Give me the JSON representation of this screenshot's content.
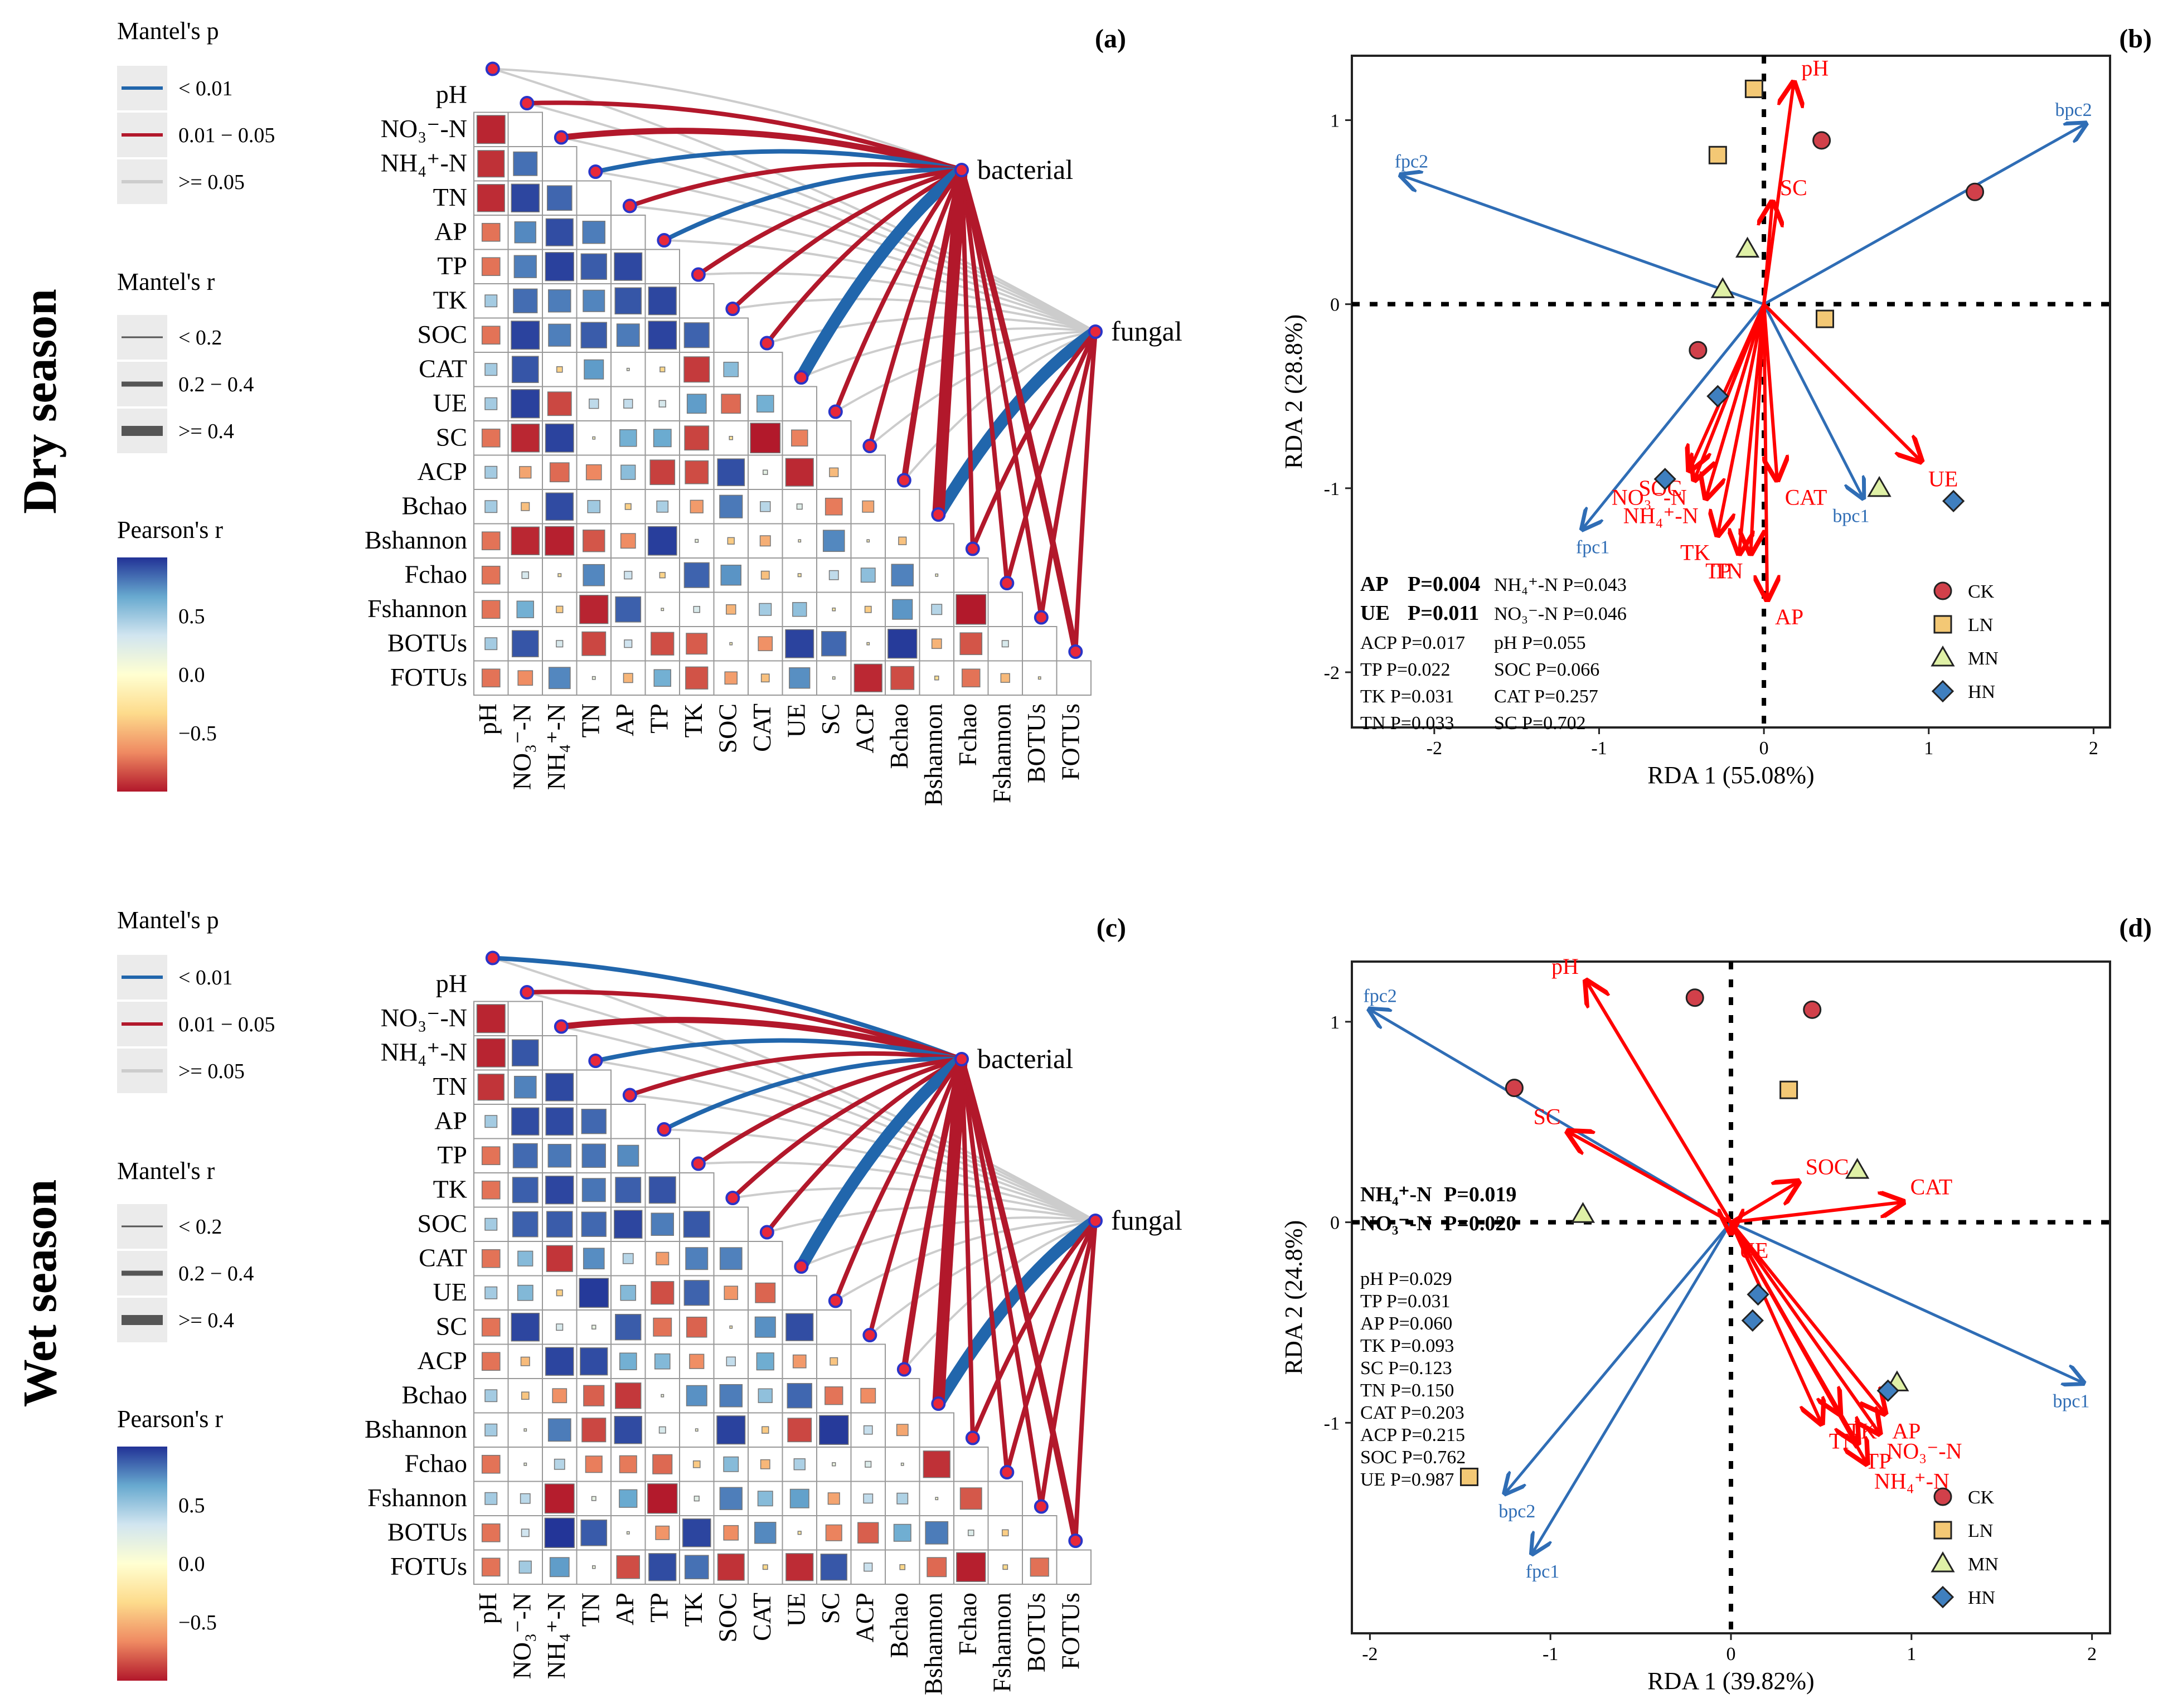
{
  "chart_data": [
    {
      "type": "heatmap",
      "panel": "(a)",
      "season": "Dry season",
      "variables": [
        "pH",
        "NO₃⁻-N",
        "NH₄⁺-N",
        "TN",
        "AP",
        "TP",
        "TK",
        "SOC",
        "CAT",
        "UE",
        "SC",
        "ACP",
        "Bchao",
        "Bshannon",
        "Fchao",
        "Fshannon",
        "BOTUs",
        "FOTUs"
      ],
      "nodes": [
        "bacterial",
        "fungal"
      ],
      "legend": {
        "mantel_p_title": "Mantel's p",
        "mantel_p_items": [
          {
            "label": "< 0.01",
            "color": "#2166ac"
          },
          {
            "label": "0.01 − 0.05",
            "color": "#b2182b"
          },
          {
            "label": ">= 0.05",
            "color": "#cccccc"
          }
        ],
        "mantel_r_title": "Mantel's r",
        "mantel_r_items": [
          "< 0.2",
          "0.2 − 0.4",
          ">= 0.4"
        ],
        "pearson_title": "Pearson's r",
        "pearson_ticks": [
          "0.5",
          "0.0",
          "−0.5"
        ]
      },
      "links": {
        "bacterial": [
          [
            "s",
            1
          ],
          [
            "p2",
            1
          ],
          [
            "p3",
            2
          ],
          [
            "p1",
            1
          ],
          [
            "p3",
            1
          ],
          [
            "p1",
            1
          ],
          [
            "p2",
            1
          ],
          [
            "p2",
            1
          ],
          [
            "p3",
            1
          ],
          [
            "p1",
            3
          ],
          [
            "p3",
            1
          ],
          [
            "p3",
            1
          ],
          [
            "p2",
            2
          ],
          [
            "p2",
            3
          ],
          [
            "p3",
            1
          ],
          [
            "p2",
            1
          ],
          [
            "p3",
            1
          ],
          [
            "p2",
            2
          ]
        ],
        "fungal": [
          [
            "s",
            1
          ],
          [
            "s",
            1
          ],
          [
            "s",
            1
          ],
          [
            "s",
            1
          ],
          [
            "s",
            1
          ],
          [
            "s",
            1
          ],
          [
            "s",
            1
          ],
          [
            "s",
            1
          ],
          [
            "s",
            1
          ],
          [
            "s",
            1
          ],
          [
            "s",
            1
          ],
          [
            "s",
            1
          ],
          [
            "s",
            1
          ],
          [
            "p1",
            3
          ],
          [
            "p3",
            1
          ],
          [
            "p2",
            1
          ],
          [
            "p2",
            1
          ],
          [
            "p2",
            1
          ]
        ]
      },
      "corr_seed": 17
    },
    {
      "type": "scatter",
      "panel": "(b)",
      "xlabel": "RDA   1   (55.08%)",
      "ylabel": "RDA 2  (28.8%)",
      "xlim": [
        -2.5,
        2.1
      ],
      "ylim": [
        -2.3,
        1.35
      ],
      "xticks": [
        "-2",
        "-1",
        "0",
        "1",
        "2"
      ],
      "xtick_values": [
        -2,
        -1,
        0,
        1,
        2
      ],
      "yticks": [
        "-2",
        "-1",
        "0",
        "1"
      ],
      "ytick_values": [
        -2,
        -1,
        0,
        1
      ],
      "env_arrows": [
        {
          "label": "pH",
          "x": 0.18,
          "y": 1.2
        },
        {
          "label": "SC",
          "x": 0.05,
          "y": 0.55
        },
        {
          "label": "SOC",
          "x": -0.45,
          "y": -0.9
        },
        {
          "label": "NO₃⁻-N",
          "x": -0.42,
          "y": -0.95
        },
        {
          "label": "NH₄⁺-N",
          "x": -0.35,
          "y": -1.05
        },
        {
          "label": "TK",
          "x": -0.28,
          "y": -1.25
        },
        {
          "label": "TP",
          "x": -0.15,
          "y": -1.35
        },
        {
          "label": "TN",
          "x": -0.08,
          "y": -1.35
        },
        {
          "label": "AP",
          "x": 0.02,
          "y": -1.6
        },
        {
          "label": "CAT",
          "x": 0.08,
          "y": -0.95
        },
        {
          "label": "UE",
          "x": 0.95,
          "y": -0.85
        }
      ],
      "bio_arrows": [
        {
          "label": "bpc2",
          "x": 1.95,
          "y": 0.98
        },
        {
          "label": "fpc2",
          "x": -2.2,
          "y": 0.7
        },
        {
          "label": "fpc1",
          "x": -1.1,
          "y": -1.22
        },
        {
          "label": "bpc1",
          "x": 0.6,
          "y": -1.05
        }
      ],
      "points": [
        {
          "group": "CK",
          "x": 0.35,
          "y": 0.89
        },
        {
          "group": "CK",
          "x": 1.28,
          "y": 0.61
        },
        {
          "group": "CK",
          "x": -0.4,
          "y": -0.25
        },
        {
          "group": "LN",
          "x": -0.06,
          "y": 1.17
        },
        {
          "group": "LN",
          "x": -0.28,
          "y": 0.81
        },
        {
          "group": "LN",
          "x": 0.37,
          "y": -0.08
        },
        {
          "group": "MN",
          "x": -0.1,
          "y": 0.3
        },
        {
          "group": "MN",
          "x": -0.25,
          "y": 0.08
        },
        {
          "group": "MN",
          "x": 0.7,
          "y": -1.0
        },
        {
          "group": "HN",
          "x": -0.28,
          "y": -0.5
        },
        {
          "group": "HN",
          "x": -0.6,
          "y": -0.95
        },
        {
          "group": "HN",
          "x": 1.15,
          "y": -1.07
        }
      ],
      "stats_bold": [
        {
          "name": "AP",
          "p": "P=0.004"
        },
        {
          "name": "UE",
          "p": "P=0.011"
        }
      ],
      "stats_col1": [
        "ACP P=0.017",
        "TP  P=0.022",
        "TK  P=0.031",
        "TN  P=0.033"
      ],
      "stats_col2": [
        "NH₄⁺-N  P=0.043",
        "NO₃⁻-N  P=0.046",
        "pH        P=0.055",
        "SOC      P=0.066",
        "CAT      P=0.257",
        "SC        P=0.702"
      ],
      "legend": [
        "CK",
        "LN",
        "MN",
        "HN"
      ]
    },
    {
      "type": "heatmap",
      "panel": "(c)",
      "season": "Wet season",
      "variables": [
        "pH",
        "NO₃⁻-N",
        "NH₄⁺-N",
        "TN",
        "AP",
        "TP",
        "TK",
        "SOC",
        "CAT",
        "UE",
        "SC",
        "ACP",
        "Bchao",
        "Bshannon",
        "Fchao",
        "Fshannon",
        "BOTUs",
        "FOTUs"
      ],
      "nodes": [
        "bacterial",
        "fungal"
      ],
      "legend": {
        "mantel_p_title": "Mantel's p",
        "mantel_p_items": [
          {
            "label": "< 0.01",
            "color": "#2166ac"
          },
          {
            "label": "0.01 − 0.05",
            "color": "#b2182b"
          },
          {
            "label": ">= 0.05",
            "color": "#cccccc"
          }
        ],
        "mantel_r_title": "Mantel's r",
        "mantel_r_items": [
          "< 0.2",
          "0.2 − 0.4",
          ">= 0.4"
        ],
        "pearson_title": "Pearson's r",
        "pearson_ticks": [
          "0.5",
          "0.0",
          "−0.5"
        ]
      },
      "links": {
        "bacterial": [
          [
            "p1",
            1
          ],
          [
            "p2",
            1
          ],
          [
            "p3",
            2
          ],
          [
            "p1",
            1
          ],
          [
            "p3",
            1
          ],
          [
            "p1",
            1
          ],
          [
            "p2",
            1
          ],
          [
            "p2",
            1
          ],
          [
            "p3",
            1
          ],
          [
            "p1",
            3
          ],
          [
            "p2",
            1
          ],
          [
            "p2",
            1
          ],
          [
            "p2",
            2
          ],
          [
            "p2",
            3
          ],
          [
            "p3",
            1
          ],
          [
            "p2",
            1
          ],
          [
            "p3",
            1
          ],
          [
            "p2",
            2
          ]
        ],
        "fungal": [
          [
            "s",
            1
          ],
          [
            "s",
            1
          ],
          [
            "s",
            1
          ],
          [
            "s",
            1
          ],
          [
            "s",
            1
          ],
          [
            "s",
            1
          ],
          [
            "s",
            1
          ],
          [
            "s",
            1
          ],
          [
            "s",
            1
          ],
          [
            "s",
            1
          ],
          [
            "s",
            1
          ],
          [
            "s",
            1
          ],
          [
            "s",
            1
          ],
          [
            "p1",
            3
          ],
          [
            "p2",
            1
          ],
          [
            "p2",
            1
          ],
          [
            "p2",
            1
          ],
          [
            "p2",
            1
          ]
        ]
      },
      "corr_seed": 29
    },
    {
      "type": "scatter",
      "panel": "(d)",
      "xlabel": "RDA   1   (39.82%)",
      "ylabel": "RDA 2  (24.8%)",
      "xlim": [
        -2.1,
        2.1
      ],
      "ylim": [
        -2.05,
        1.3
      ],
      "xticks": [
        "-2",
        "-1",
        "0",
        "1",
        "2"
      ],
      "xtick_values": [
        -2,
        -1,
        0,
        1,
        2
      ],
      "yticks": [
        "-1",
        "0",
        "1"
      ],
      "ytick_values": [
        -1,
        0,
        1
      ],
      "env_arrows": [
        {
          "label": "pH",
          "x": -0.8,
          "y": 1.2
        },
        {
          "label": "SC",
          "x": -0.9,
          "y": 0.45
        },
        {
          "label": "SOC",
          "x": 0.37,
          "y": 0.2
        },
        {
          "label": "CAT",
          "x": 0.95,
          "y": 0.1
        },
        {
          "label": "UE",
          "x": 0.0,
          "y": -0.05
        },
        {
          "label": "TN",
          "x": 0.5,
          "y": -1.0
        },
        {
          "label": "TK",
          "x": 0.6,
          "y": -0.95
        },
        {
          "label": "TP",
          "x": 0.7,
          "y": -1.1
        },
        {
          "label": "AP",
          "x": 0.85,
          "y": -0.95
        },
        {
          "label": "NO₃⁻-N",
          "x": 0.82,
          "y": -1.05
        },
        {
          "label": "NH₄⁺-N",
          "x": 0.75,
          "y": -1.2
        }
      ],
      "bio_arrows": [
        {
          "label": "fpc2",
          "x": -2.0,
          "y": 1.06
        },
        {
          "label": "bpc1",
          "x": 1.95,
          "y": -0.8
        },
        {
          "label": "bpc2",
          "x": -1.25,
          "y": -1.35
        },
        {
          "label": "fpc1",
          "x": -1.1,
          "y": -1.65
        }
      ],
      "points": [
        {
          "group": "CK",
          "x": -0.2,
          "y": 1.12
        },
        {
          "group": "CK",
          "x": 0.45,
          "y": 1.06
        },
        {
          "group": "CK",
          "x": -1.2,
          "y": 0.67
        },
        {
          "group": "LN",
          "x": 0.32,
          "y": 0.66
        },
        {
          "group": "LN",
          "x": -1.45,
          "y": -1.27
        },
        {
          "group": "MN",
          "x": 0.7,
          "y": 0.26
        },
        {
          "group": "MN",
          "x": -0.82,
          "y": 0.04
        },
        {
          "group": "MN",
          "x": 0.92,
          "y": -0.8
        },
        {
          "group": "HN",
          "x": 0.15,
          "y": -0.36
        },
        {
          "group": "HN",
          "x": 0.12,
          "y": -0.49
        },
        {
          "group": "HN",
          "x": 0.87,
          "y": -0.84
        }
      ],
      "stats_bold": [
        {
          "name": "NH₄⁺-N",
          "p": "P=0.019"
        },
        {
          "name": "NO₃⁻-N",
          "p": "P=0.020"
        }
      ],
      "stats_col1": [
        "pH      P=0.029",
        "TP      P=0.031",
        "AP      P=0.060",
        "TK      P=0.093",
        "SC      P=0.123",
        "TN      P=0.150",
        "CAT   P=0.203",
        "ACP   P=0.215",
        "SOC  P=0.762",
        "UE      P=0.987"
      ],
      "stats_col2": [],
      "legend": [
        "CK",
        "LN",
        "MN",
        "HN"
      ]
    }
  ],
  "colors": {
    "blue": "#2166ac",
    "red": "#b2182b",
    "grey": "#cccccc",
    "arrow_env": "#ff0000",
    "arrow_bio": "#2f6db5",
    "CK": "#d1404a",
    "LN": "#f3c875",
    "MN": "#dff0a6",
    "HN": "#3f7fbf"
  }
}
